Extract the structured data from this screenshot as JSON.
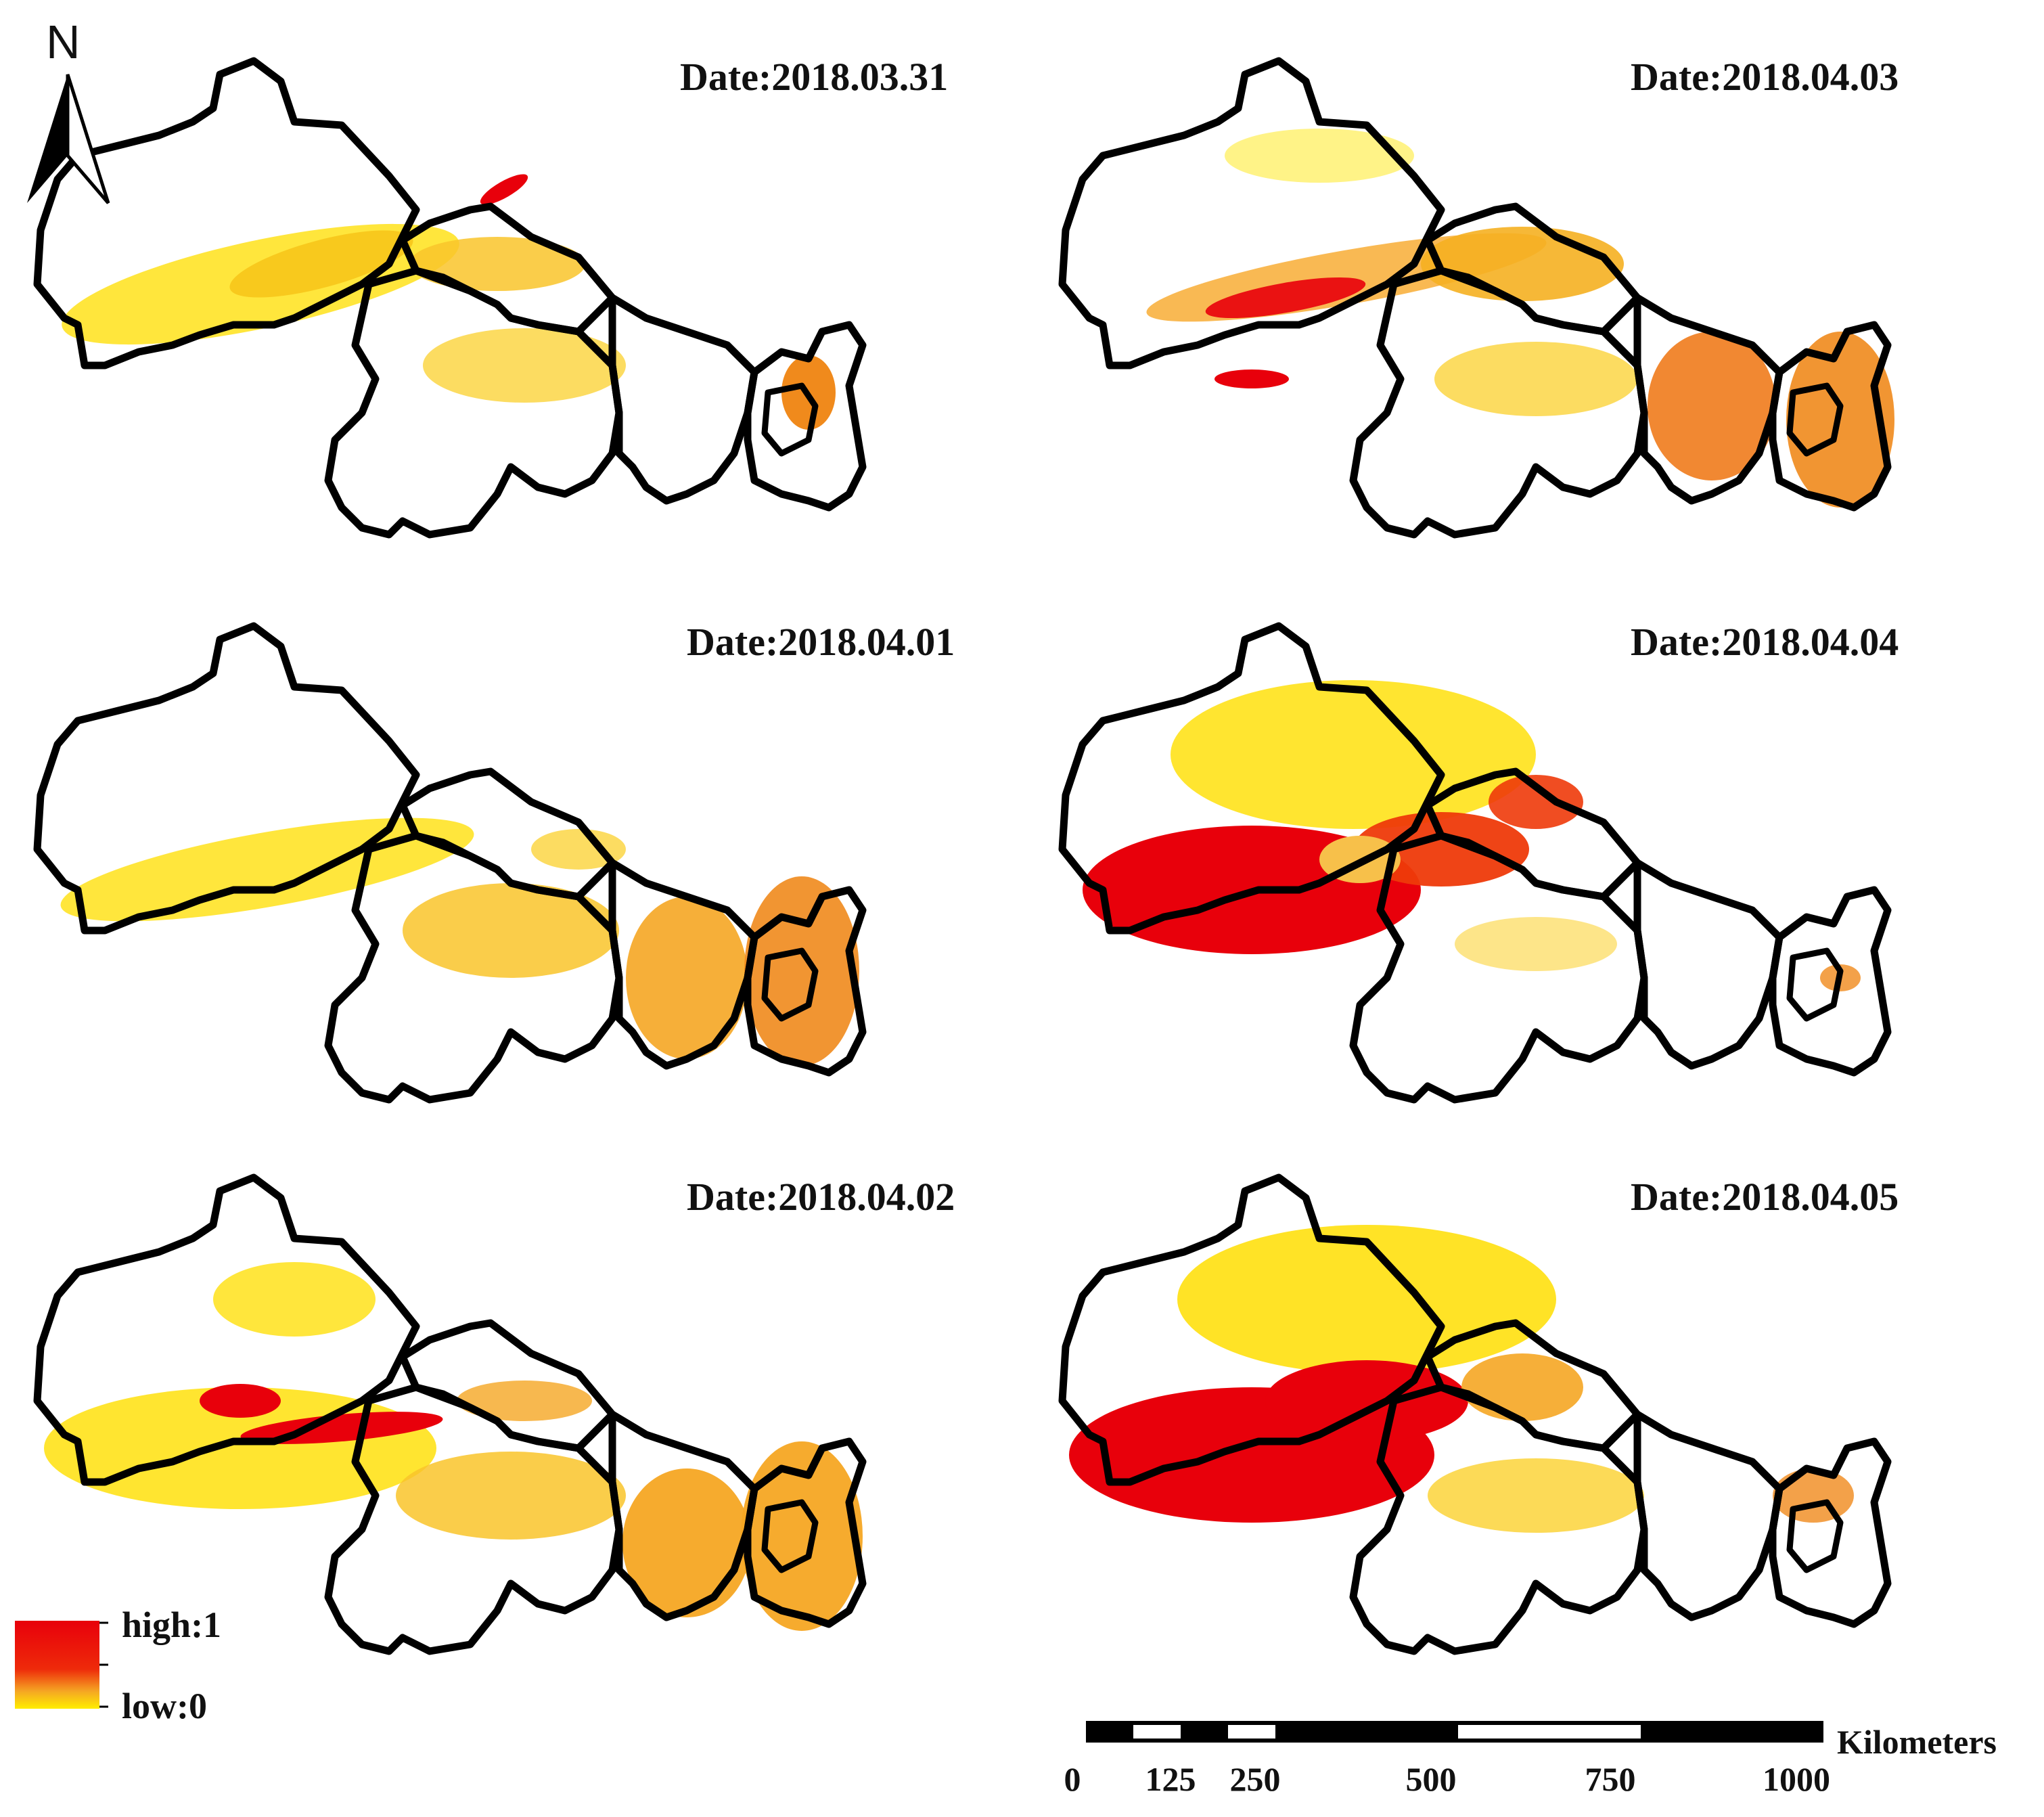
{
  "title": "",
  "north_arrow": {
    "label": "N"
  },
  "panels": [
    {
      "id": "p1",
      "date": "Date:2018.03.31"
    },
    {
      "id": "p2",
      "date": "Date:2018.04.03"
    },
    {
      "id": "p3",
      "date": "Date:2018.04.01"
    },
    {
      "id": "p4",
      "date": "Date:2018.04.04"
    },
    {
      "id": "p5",
      "date": "Date:2018.04.02"
    },
    {
      "id": "p6",
      "date": "Date:2018.04.05"
    }
  ],
  "legend": {
    "high": "high:1",
    "low": "low:0",
    "colors": {
      "high": "#e8000b",
      "mid": "#f5a623",
      "low": "#ffee00"
    }
  },
  "scale_bar": {
    "unit": "Kilometers",
    "ticks": [
      "0",
      "125",
      "250",
      "500",
      "750",
      "1000"
    ]
  },
  "colors": {
    "boundary": "#000000",
    "red": "#e8000b",
    "orange": "#f08a1c",
    "yellow": "#ffe21a",
    "light_yellow": "#fff27a"
  }
}
